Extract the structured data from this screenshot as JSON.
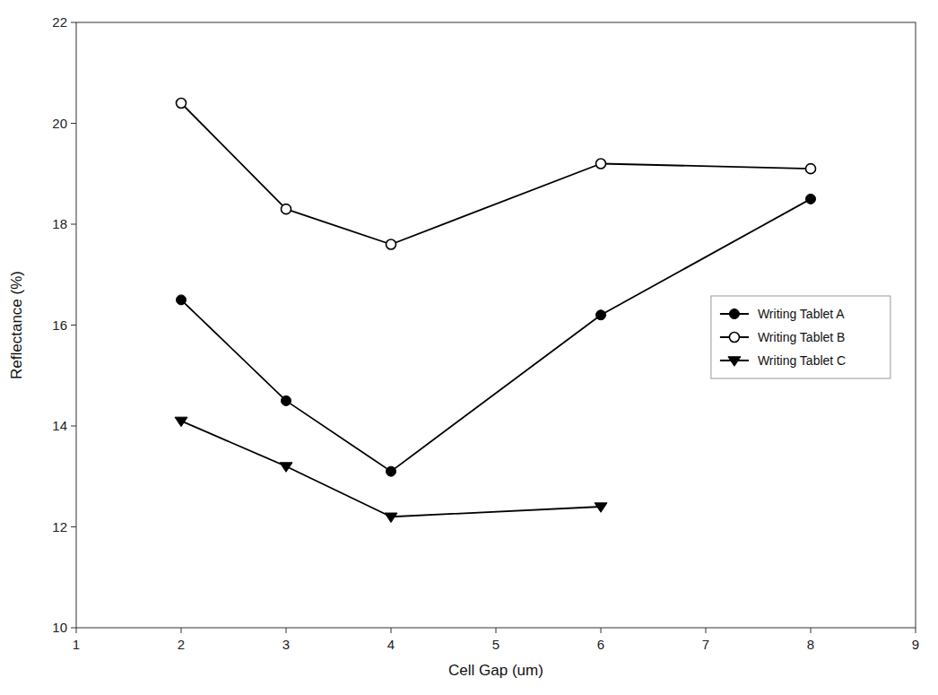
{
  "chart_data": {
    "type": "line",
    "x": [
      2,
      3,
      4,
      6,
      8
    ],
    "series": [
      {
        "name": "Writing Tablet A",
        "color": "black",
        "marker": "circle",
        "line_style": "solid",
        "values": [
          16.5,
          14.5,
          13.1,
          16.2,
          18.5
        ]
      },
      {
        "name": "Writing Tablet B",
        "color": "black",
        "marker": "open-circle",
        "line_style": "solid",
        "values": [
          20.4,
          18.3,
          17.6,
          19.2,
          19.1
        ]
      },
      {
        "name": "Writing Tablet C",
        "color": "black",
        "marker": "triangle-down",
        "line_style": "solid",
        "values": [
          14.1,
          13.2,
          12.2,
          12.4,
          null
        ]
      }
    ],
    "xlabel": "Cell Gap (um)",
    "ylabel": "Reflectance (%)",
    "xlim": [
      1,
      9
    ],
    "ylim": [
      10,
      22
    ],
    "xticks": [
      1,
      2,
      3,
      4,
      5,
      6,
      7,
      8,
      9
    ],
    "yticks": [
      10,
      12,
      14,
      16,
      18,
      20,
      22
    ],
    "grid": false,
    "legend": "right"
  }
}
